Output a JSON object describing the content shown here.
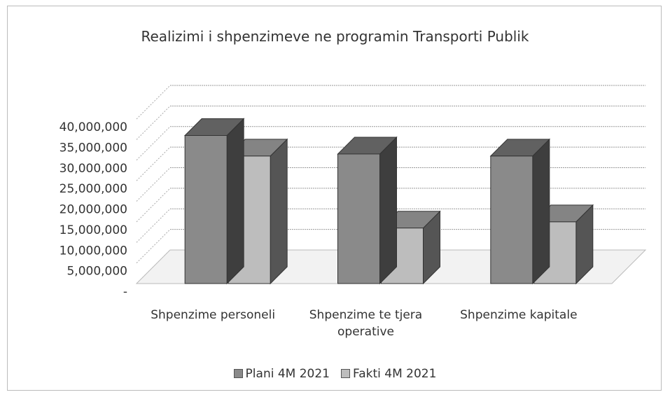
{
  "chart_data": {
    "type": "bar3d",
    "title": "Realizimi i shpenzimeve ne programin Transporti Publik",
    "categories": [
      "Shpenzime personeli",
      "Shpenzime te tjera operative",
      "Shpenzime kapitale"
    ],
    "series": [
      {
        "name": "Plani 4M 2021",
        "color": "#8a8a8a",
        "values": [
          36000000,
          31500000,
          31000000
        ]
      },
      {
        "name": "Fakti 4M 2021",
        "color": "#bdbdbd",
        "values": [
          31000000,
          13500000,
          15000000
        ]
      }
    ],
    "ylim": [
      0,
      40000000
    ],
    "yticks": [
      {
        "value": 0,
        "label": "-"
      },
      {
        "value": 5000000,
        "label": "5,000,000"
      },
      {
        "value": 10000000,
        "label": "10,000,000"
      },
      {
        "value": 15000000,
        "label": "15,000,000"
      },
      {
        "value": 20000000,
        "label": "20,000,000"
      },
      {
        "value": 25000000,
        "label": "25,000,000"
      },
      {
        "value": 30000000,
        "label": "30,000,000"
      },
      {
        "value": 35000000,
        "label": "35,000,000"
      },
      {
        "value": 40000000,
        "label": "40,000,000"
      }
    ],
    "grid": true,
    "legend": "bottom"
  }
}
